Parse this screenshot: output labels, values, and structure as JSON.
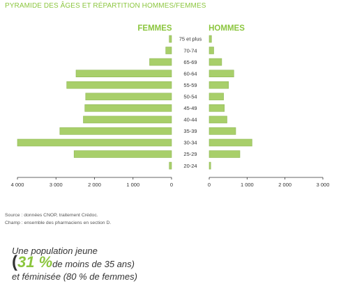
{
  "header": {
    "title": "PYRAMIDE DES ÂGES ET RÉPARTITION HOMMES/FEMMES"
  },
  "colors": {
    "bar": "#a8cf6a",
    "bar_stroke": "#8fb856",
    "accent": "#8cc63f",
    "axis": "#333333"
  },
  "chart_data": {
    "type": "bar",
    "orientation": "horizontal-pyramid",
    "categories": [
      "75 et plus",
      "70-74",
      "65-69",
      "60-64",
      "55-59",
      "50-54",
      "45-49",
      "40-44",
      "35-39",
      "30-34",
      "25-29",
      "20-24"
    ],
    "series": [
      {
        "name": "FEMMES",
        "values": [
          60,
          150,
          570,
          2480,
          2720,
          2230,
          2250,
          2290,
          2900,
          4000,
          2530,
          60
        ]
      },
      {
        "name": "HOMMES",
        "values": [
          60,
          120,
          330,
          650,
          510,
          380,
          400,
          470,
          700,
          1130,
          810,
          40
        ]
      }
    ],
    "left_ticks": [
      "4 000",
      "3 000",
      "2 000",
      "1 000",
      "0"
    ],
    "right_ticks": [
      "0",
      "1 000",
      "2 000",
      "3 000"
    ],
    "xlim": [
      0,
      4000
    ]
  },
  "source": {
    "line1": "Source : données CNOP, traitement Crédoc.",
    "line2": "Champ : ensemble des pharmaciens en section D."
  },
  "highlight": {
    "line1": "Une population jeune",
    "open_paren": "(",
    "percent": "31 %",
    "line2_rest": " de moins de 35 ans)",
    "line3": "et féminisée (80 % de femmes)"
  }
}
